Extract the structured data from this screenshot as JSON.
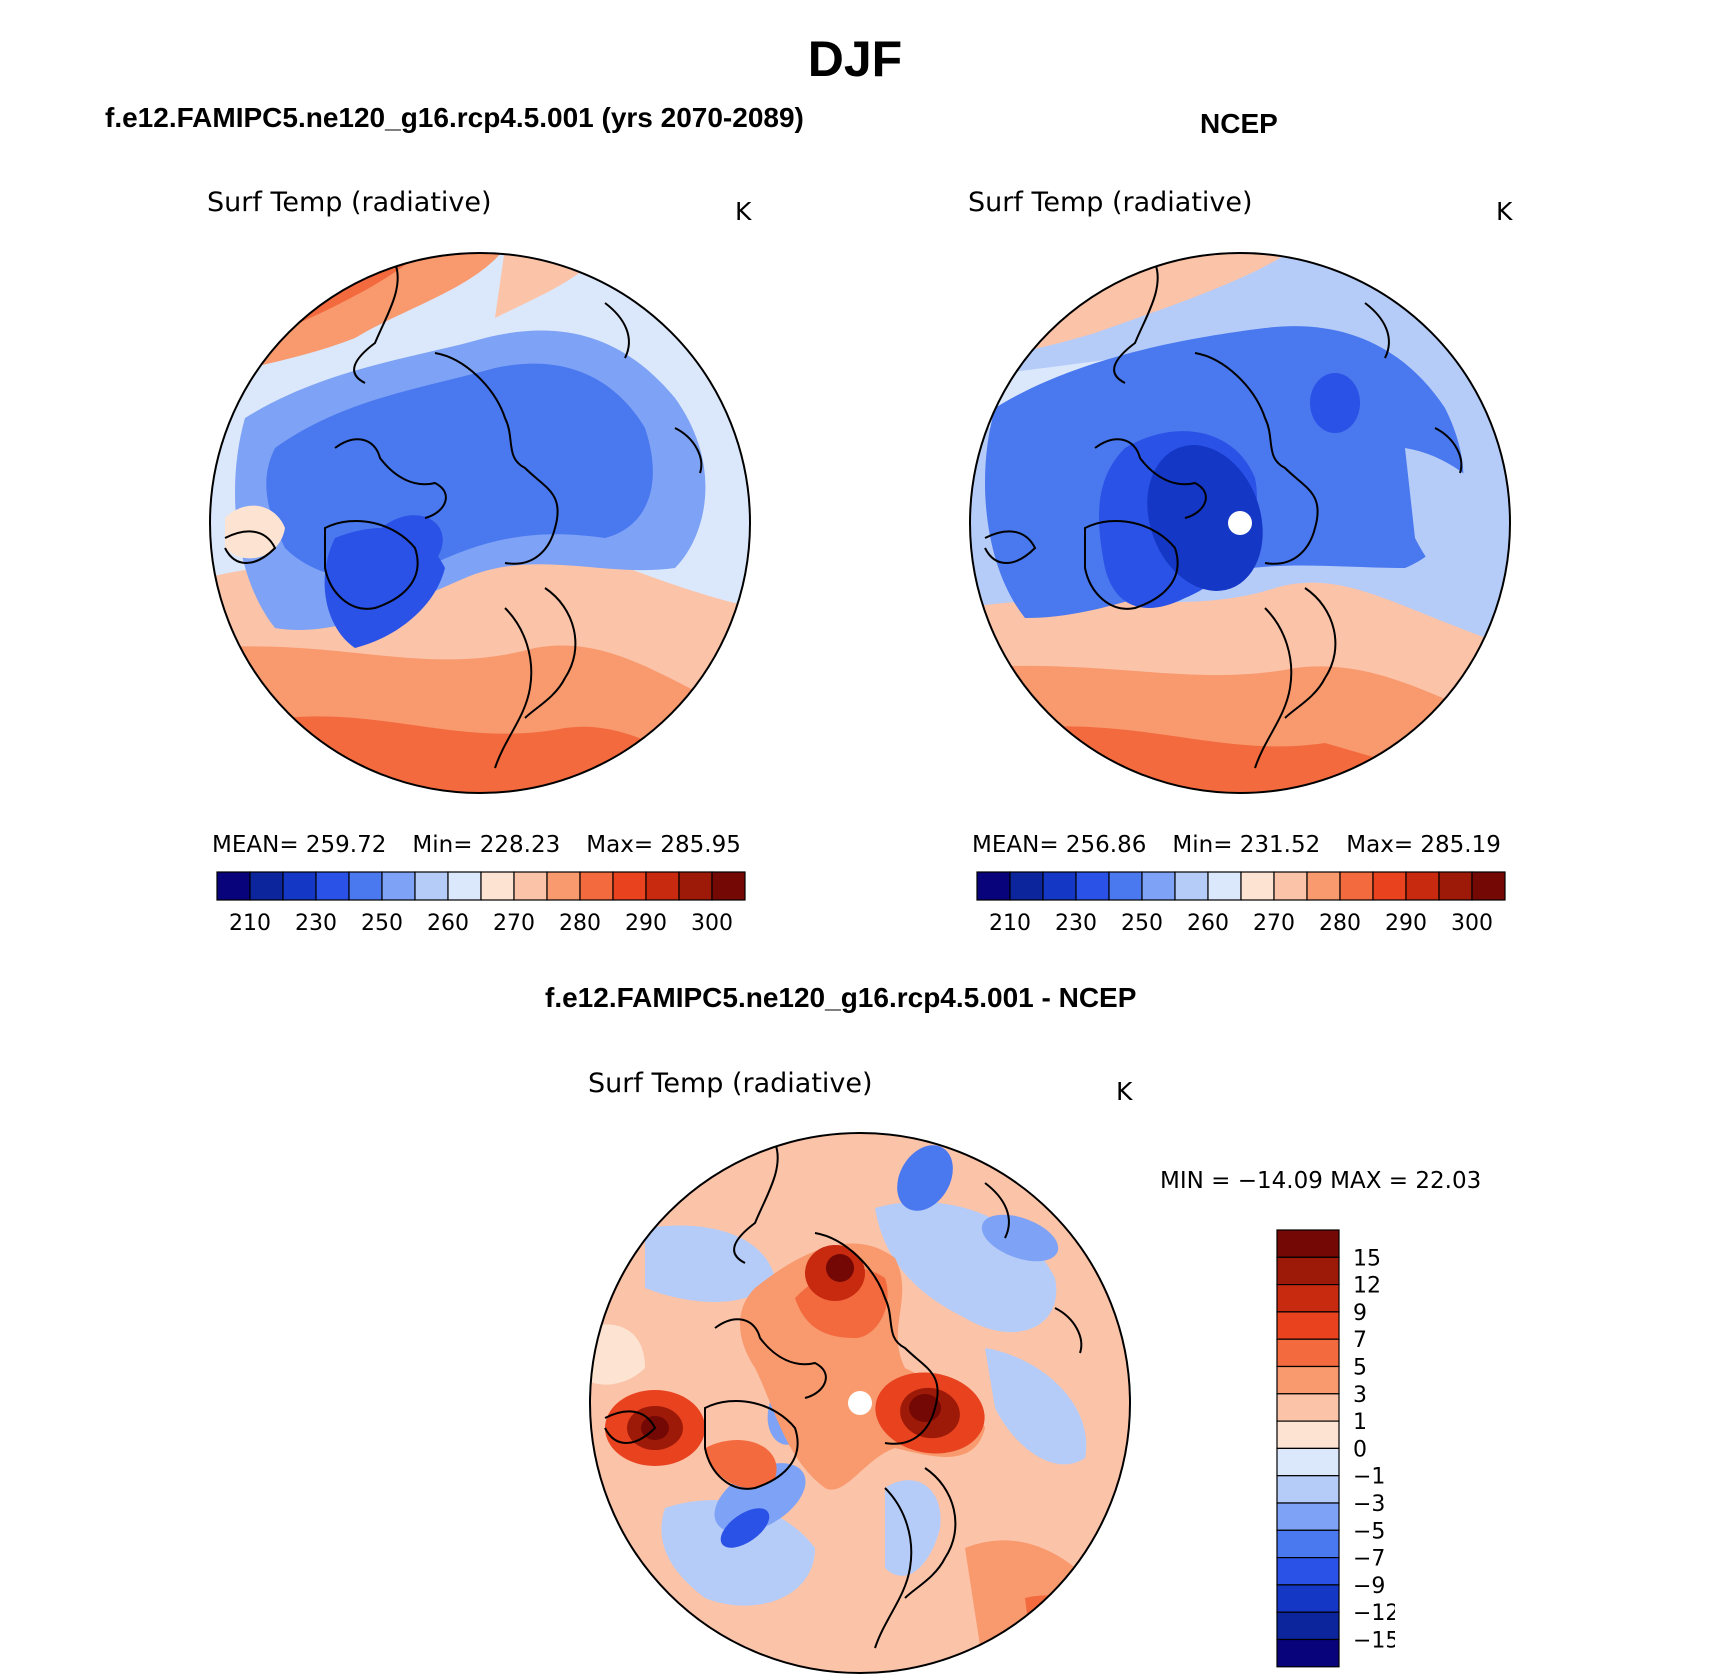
{
  "title": "DJF",
  "panels": [
    {
      "case": "f.e12.FAMIPC5.ne120_g16.rcp4.5.001 (yrs 2070-2089)",
      "variable": "Surf Temp (radiative)",
      "units": "K",
      "stats": {
        "mean": "MEAN= 259.72",
        "min": "Min= 228.23",
        "max": "Max= 285.95"
      },
      "pole_gap": false
    },
    {
      "case": "NCEP",
      "variable": "Surf Temp (radiative)",
      "units": "K",
      "stats": {
        "mean": "MEAN= 256.86",
        "min": "Min= 231.52",
        "max": "Max= 285.19"
      },
      "pole_gap": true
    }
  ],
  "diff": {
    "case": "f.e12.FAMIPC5.ne120_g16.rcp4.5.001 - NCEP",
    "variable": "Surf Temp (radiative)",
    "units": "K",
    "minmax": "MIN = −14.09 MAX =  22.03"
  },
  "abs_colorbar": {
    "colors": [
      "#08037a",
      "#0c249c",
      "#1437c6",
      "#2a52e6",
      "#4a78ef",
      "#7ea2f5",
      "#b6ccf8",
      "#dbe8fb",
      "#fde4d2",
      "#fbc3a8",
      "#f8996e",
      "#f36a3e",
      "#e8421f",
      "#c82a10",
      "#9e1a08",
      "#730804"
    ],
    "labels": [
      "210",
      "230",
      "250",
      "260",
      "270",
      "280",
      "290",
      "300"
    ]
  },
  "diff_colorbar": {
    "colors": [
      "#730804",
      "#9e1a08",
      "#c82a10",
      "#e8421f",
      "#f36a3e",
      "#f8996e",
      "#fbc3a8",
      "#fde4d2",
      "#dbe8fb",
      "#b6ccf8",
      "#7ea2f5",
      "#4a78ef",
      "#2a52e6",
      "#1437c6",
      "#0c249c",
      "#08037a"
    ],
    "labels": [
      "15",
      "12",
      "9",
      "7",
      "5",
      "3",
      "1",
      "0",
      "−1",
      "−3",
      "−5",
      "−7",
      "−9",
      "−12",
      "−15"
    ]
  }
}
